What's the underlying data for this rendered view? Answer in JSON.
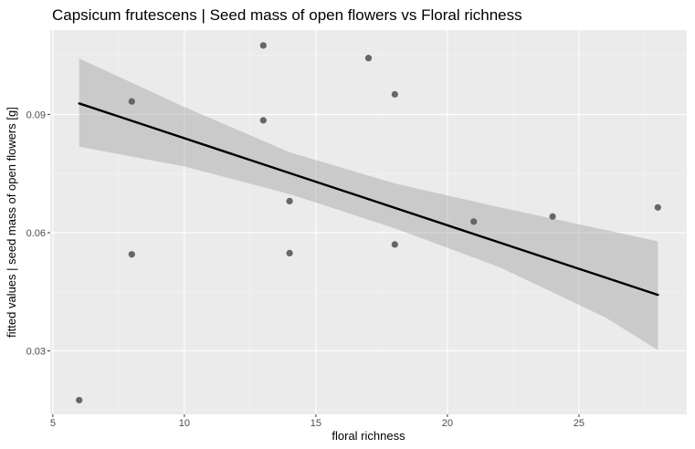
{
  "chart_data": {
    "type": "scatter",
    "title": "Capsicum frutescens | Seed mass of open flowers vs Floral richness",
    "xlabel": "floral richness",
    "ylabel": "fitted values | seed mass of open flowers [g]",
    "xlim": [
      4.9,
      29.1
    ],
    "ylim": [
      0.0139,
      0.1114
    ],
    "x_ticks": [
      5,
      10,
      15,
      20,
      25
    ],
    "x_tick_labels": [
      "5",
      "10",
      "15",
      "20",
      "25"
    ],
    "y_ticks": [
      0.03,
      0.06,
      0.09
    ],
    "y_tick_labels": [
      "0.03",
      "0.06",
      "0.09"
    ],
    "grid": true,
    "points": [
      {
        "x": 6,
        "y": 0.0175
      },
      {
        "x": 8,
        "y": 0.0545
      },
      {
        "x": 8,
        "y": 0.0933
      },
      {
        "x": 13,
        "y": 0.1075
      },
      {
        "x": 13,
        "y": 0.0885
      },
      {
        "x": 14,
        "y": 0.068
      },
      {
        "x": 14,
        "y": 0.0548
      },
      {
        "x": 17,
        "y": 0.1043
      },
      {
        "x": 18,
        "y": 0.0951
      },
      {
        "x": 18,
        "y": 0.057
      },
      {
        "x": 21,
        "y": 0.0628
      },
      {
        "x": 24,
        "y": 0.0641
      },
      {
        "x": 28,
        "y": 0.0664
      }
    ],
    "fit_line": [
      {
        "x": 6,
        "y": 0.0928
      },
      {
        "x": 28,
        "y": 0.0442
      }
    ],
    "confidence_band": [
      {
        "x": 6,
        "lower": 0.0818,
        "upper": 0.1042
      },
      {
        "x": 10,
        "lower": 0.0768,
        "upper": 0.0919
      },
      {
        "x": 14,
        "lower": 0.0698,
        "upper": 0.0804
      },
      {
        "x": 18,
        "lower": 0.0611,
        "upper": 0.0725
      },
      {
        "x": 22,
        "lower": 0.0512,
        "upper": 0.0664
      },
      {
        "x": 26,
        "lower": 0.0385,
        "upper": 0.0607
      },
      {
        "x": 28,
        "lower": 0.0302,
        "upper": 0.0578
      }
    ],
    "colors": {
      "panel_background": "#ebebeb",
      "grid_major": "#ffffff",
      "point": "#666666",
      "fit_line": "#000000",
      "band": "#999999"
    }
  }
}
